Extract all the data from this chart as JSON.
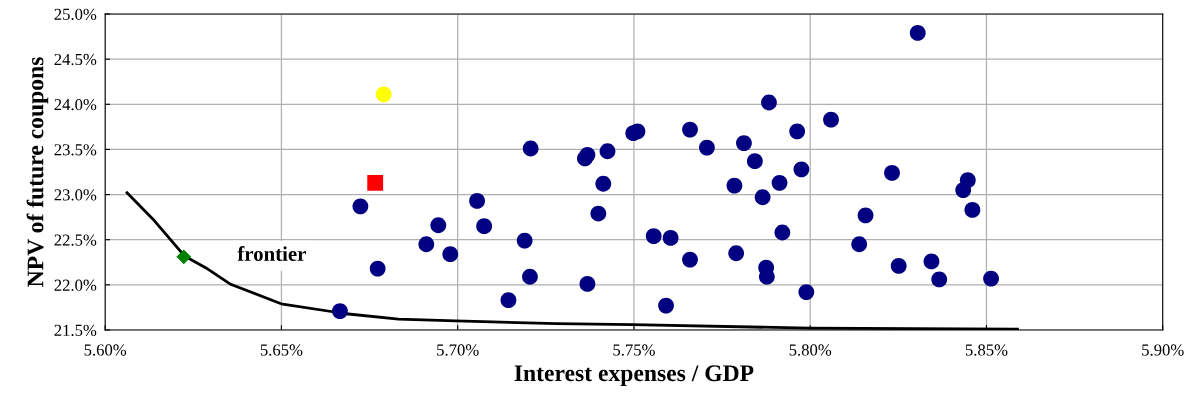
{
  "chart_data": {
    "type": "scatter",
    "xlabel": "Interest expenses / GDP",
    "ylabel": "NPV of future coupons",
    "grid": true,
    "xlim": [
      5.6,
      5.9
    ],
    "ylim": [
      21.5,
      25.0
    ],
    "xticks": [
      {
        "value": 5.6,
        "label": "5.60%"
      },
      {
        "value": 5.65,
        "label": "5.65%"
      },
      {
        "value": 5.7,
        "label": "5.70%"
      },
      {
        "value": 5.75,
        "label": "5.75%"
      },
      {
        "value": 5.8,
        "label": "5.80%"
      },
      {
        "value": 5.85,
        "label": "5.85%"
      },
      {
        "value": 5.9,
        "label": "5.90%"
      }
    ],
    "yticks": [
      {
        "value": 21.5,
        "label": "21.5%"
      },
      {
        "value": 22.0,
        "label": "22.0%"
      },
      {
        "value": 22.5,
        "label": "22.5%"
      },
      {
        "value": 23.0,
        "label": "23.0%"
      },
      {
        "value": 23.5,
        "label": "23.5%"
      },
      {
        "value": 24.0,
        "label": "24.0%"
      },
      {
        "value": 24.5,
        "label": "24.5%"
      },
      {
        "value": 25.0,
        "label": "25.0%"
      }
    ],
    "annotations": [
      "frontier"
    ],
    "series": [
      {
        "type": "line",
        "color": "#000000",
        "marker": "none",
        "line_style": "solid",
        "x": [
          5.6062,
          5.6135,
          5.6225,
          5.6285,
          5.6354,
          5.6499,
          5.6683,
          5.6832,
          5.6995,
          5.728,
          5.7495,
          5.8,
          5.8588
        ],
        "values": [
          23.02,
          22.73,
          22.32,
          22.19,
          22.01,
          21.79,
          21.68,
          21.62,
          21.6,
          21.57,
          21.56,
          21.52,
          21.51
        ]
      },
      {
        "color": "#000080",
        "marker": "circle",
        "x": [
          5.6666,
          5.6724,
          5.6773,
          5.6911,
          5.6945,
          5.6979,
          5.7055,
          5.7075,
          5.7144,
          5.719,
          5.7205,
          5.7207,
          5.7361,
          5.7368,
          5.7368,
          5.7399,
          5.7413,
          5.7425,
          5.7498,
          5.751,
          5.7659,
          5.7707,
          5.7812,
          5.7883,
          5.7843,
          5.7963,
          5.8059,
          5.8305,
          5.7785,
          5.7913,
          5.7975,
          5.7865,
          5.8232,
          5.8447,
          5.8434,
          5.846,
          5.8157,
          5.7921,
          5.7556,
          5.7604,
          5.8139,
          5.7659,
          5.779,
          5.7875,
          5.7877,
          5.8251,
          5.8344,
          5.8366,
          5.8513,
          5.7989,
          5.7591
        ],
        "values": [
          21.71,
          22.87,
          22.18,
          22.45,
          22.66,
          22.34,
          22.93,
          22.65,
          21.83,
          22.49,
          22.09,
          23.51,
          23.4,
          23.44,
          22.01,
          22.79,
          23.12,
          23.48,
          23.68,
          23.7,
          23.72,
          23.52,
          23.57,
          24.02,
          23.37,
          23.7,
          23.83,
          24.79,
          23.1,
          23.13,
          23.28,
          22.97,
          23.24,
          23.16,
          23.05,
          22.83,
          22.77,
          22.58,
          22.54,
          22.52,
          22.45,
          22.28,
          22.35,
          22.19,
          22.09,
          22.21,
          22.26,
          22.06,
          22.07,
          21.92,
          21.77
        ]
      },
      {
        "color": "#ffff00",
        "marker": "circle",
        "x": [
          5.679
        ],
        "values": [
          24.11
        ]
      },
      {
        "color": "#ff0000",
        "marker": "square",
        "x": [
          5.6766
        ],
        "values": [
          23.13
        ]
      },
      {
        "color": "#008000",
        "marker": "diamond",
        "x": [
          5.6223
        ],
        "values": [
          22.31
        ]
      }
    ]
  }
}
